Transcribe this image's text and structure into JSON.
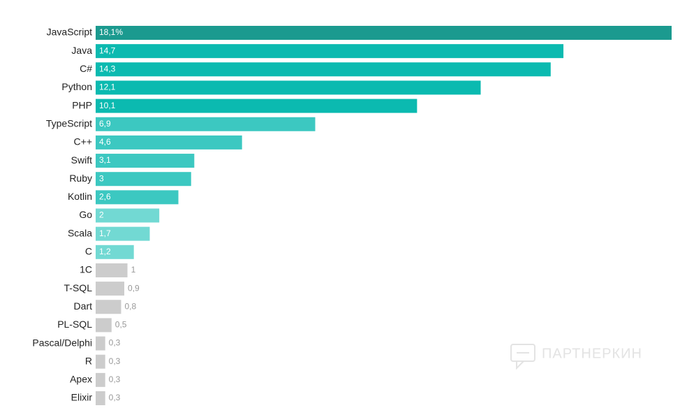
{
  "chart_data": {
    "type": "bar",
    "orientation": "horizontal",
    "categories": [
      "JavaScript",
      "Java",
      "C#",
      "Python",
      "PHP",
      "TypeScript",
      "C++",
      "Swift",
      "Ruby",
      "Kotlin",
      "Go",
      "Scala",
      "C",
      "1C",
      "T-SQL",
      "Dart",
      "PL-SQL",
      "Pascal/Delphi",
      "R",
      "Apex",
      "Elixir"
    ],
    "values": [
      18.1,
      14.7,
      14.3,
      12.1,
      10.1,
      6.9,
      4.6,
      3.1,
      3,
      2.6,
      2,
      1.7,
      1.2,
      1,
      0.9,
      0.8,
      0.5,
      0.3,
      0.3,
      0.3,
      0.3
    ],
    "value_labels": [
      "18,1%",
      "14,7",
      "14,3",
      "12,1",
      "10,1",
      "6,9",
      "4,6",
      "3,1",
      "3",
      "2,6",
      "2",
      "1,7",
      "1,2",
      "1",
      "0,9",
      "0,8",
      "0,5",
      "0,3",
      "0,3",
      "0,3",
      "0,3"
    ],
    "colors": [
      "#1b9a8f",
      "#0bbab0",
      "#0bbab0",
      "#0bbab0",
      "#0bbab0",
      "#3cc8c1",
      "#3cc8c1",
      "#3cc8c1",
      "#3cc8c1",
      "#3cc8c1",
      "#72d9d3",
      "#72d9d3",
      "#72d9d3",
      "#cccccc",
      "#cccccc",
      "#cccccc",
      "#cccccc",
      "#cccccc",
      "#cccccc",
      "#cccccc",
      "#cccccc"
    ],
    "watermark": "ПАРТНЕРКИН"
  }
}
